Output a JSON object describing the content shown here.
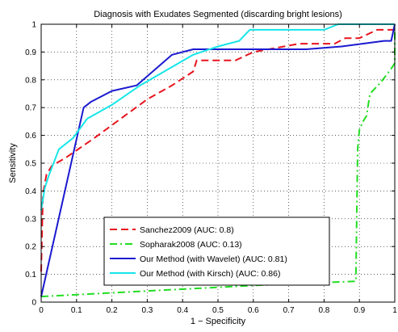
{
  "chart_data": {
    "type": "line",
    "title": "Diagnosis with Exudates Segmented (discarding bright lesions)",
    "xlabel": "1 − Specificity",
    "ylabel": "Sensitivity",
    "xlim": [
      0,
      1
    ],
    "ylim": [
      0,
      1
    ],
    "xticks": [
      0,
      0.1,
      0.2,
      0.3,
      0.4,
      0.5,
      0.6,
      0.7,
      0.8,
      0.9,
      1
    ],
    "xtick_labels": [
      "0",
      "0.1",
      "0.2",
      "0.3",
      "0.4",
      "0.5",
      "0.6",
      "0.7",
      "0.8",
      "0.9",
      "1"
    ],
    "yticks": [
      0,
      0.1,
      0.2,
      0.3,
      0.4,
      0.5,
      0.6,
      0.7,
      0.8,
      0.9,
      1
    ],
    "ytick_labels": [
      "0",
      "0.1",
      "0.2",
      "0.3",
      "0.4",
      "0.5",
      "0.6",
      "0.7",
      "0.8",
      "0.9",
      "1"
    ],
    "grid": true,
    "legend_position": "lower-center",
    "series": [
      {
        "name": "Sanchez2009 (AUC: 0.8)",
        "color": "#e8141e",
        "style": "dashed",
        "points": [
          [
            0,
            0.11
          ],
          [
            0.005,
            0.39
          ],
          [
            0.015,
            0.46
          ],
          [
            0.03,
            0.49
          ],
          [
            0.07,
            0.52
          ],
          [
            0.15,
            0.59
          ],
          [
            0.3,
            0.73
          ],
          [
            0.37,
            0.78
          ],
          [
            0.43,
            0.83
          ],
          [
            0.44,
            0.87
          ],
          [
            0.55,
            0.87
          ],
          [
            0.6,
            0.9
          ],
          [
            0.73,
            0.93
          ],
          [
            0.83,
            0.93
          ],
          [
            0.86,
            0.95
          ],
          [
            0.9,
            0.95
          ],
          [
            0.95,
            0.98
          ],
          [
            1,
            0.98
          ]
        ]
      },
      {
        "name": "Sopharak2008 (AUC: 0.13)",
        "color": "#22dd22",
        "style": "dashdot",
        "points": [
          [
            0,
            0.02
          ],
          [
            0.3,
            0.04
          ],
          [
            0.6,
            0.06
          ],
          [
            0.89,
            0.075
          ],
          [
            0.895,
            0.55
          ],
          [
            0.9,
            0.62
          ],
          [
            0.91,
            0.65
          ],
          [
            0.92,
            0.67
          ],
          [
            0.93,
            0.75
          ],
          [
            0.96,
            0.79
          ],
          [
            0.99,
            0.84
          ],
          [
            1,
            0.86
          ],
          [
            1,
            0.98
          ]
        ]
      },
      {
        "name": "Our Method (with Wavelet) (AUC: 0.81)",
        "color": "#1a1ad0",
        "style": "solid",
        "points": [
          [
            0,
            0.02
          ],
          [
            0.12,
            0.7
          ],
          [
            0.14,
            0.72
          ],
          [
            0.2,
            0.76
          ],
          [
            0.27,
            0.78
          ],
          [
            0.37,
            0.89
          ],
          [
            0.43,
            0.91
          ],
          [
            0.48,
            0.91
          ],
          [
            0.65,
            0.91
          ],
          [
            0.75,
            0.91
          ],
          [
            0.85,
            0.92
          ],
          [
            0.97,
            0.94
          ],
          [
            0.99,
            0.94
          ],
          [
            1,
            1
          ]
        ]
      },
      {
        "name": "Our Method (with Kirsch) (AUC: 0.86)",
        "color": "#16e6e8",
        "style": "solid",
        "points": [
          [
            0,
            0.33
          ],
          [
            0.01,
            0.41
          ],
          [
            0.02,
            0.45
          ],
          [
            0.05,
            0.55
          ],
          [
            0.09,
            0.59
          ],
          [
            0.13,
            0.66
          ],
          [
            0.2,
            0.71
          ],
          [
            0.28,
            0.78
          ],
          [
            0.43,
            0.89
          ],
          [
            0.5,
            0.92
          ],
          [
            0.56,
            0.94
          ],
          [
            0.59,
            0.98
          ],
          [
            0.7,
            0.98
          ],
          [
            0.8,
            0.98
          ],
          [
            0.84,
            1
          ],
          [
            1,
            1
          ]
        ]
      }
    ]
  }
}
